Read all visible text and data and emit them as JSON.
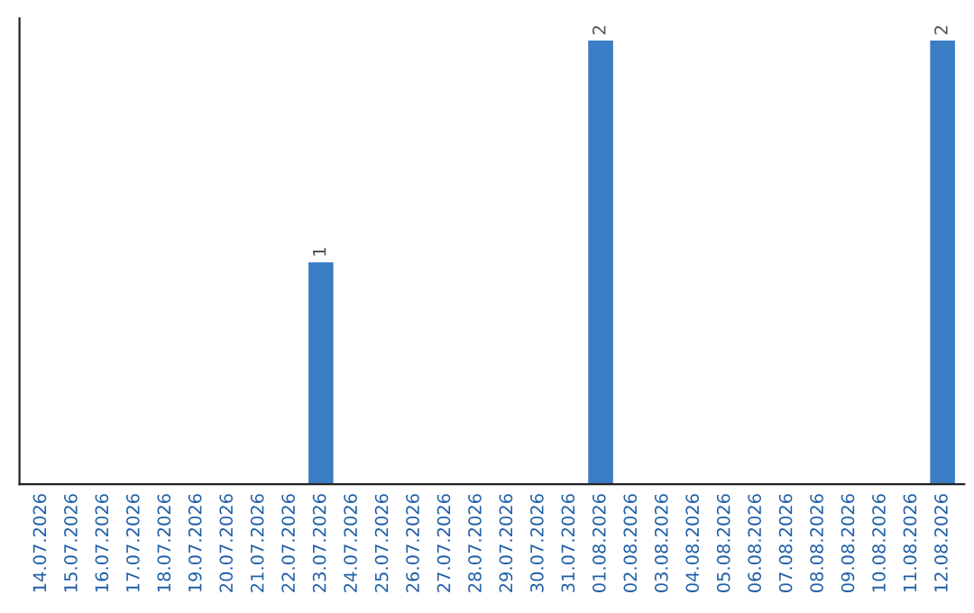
{
  "chart_data": {
    "type": "bar",
    "categories": [
      "14.07.2026",
      "15.07.2026",
      "16.07.2026",
      "17.07.2026",
      "18.07.2026",
      "19.07.2026",
      "20.07.2026",
      "21.07.2026",
      "22.07.2026",
      "23.07.2026",
      "24.07.2026",
      "25.07.2026",
      "26.07.2026",
      "27.07.2026",
      "28.07.2026",
      "29.07.2026",
      "30.07.2026",
      "31.07.2026",
      "01.08.2026",
      "02.08.2026",
      "03.08.2026",
      "04.08.2026",
      "05.08.2026",
      "06.08.2026",
      "07.08.2026",
      "08.08.2026",
      "09.08.2026",
      "10.08.2026",
      "11.08.2026",
      "12.08.2026"
    ],
    "values": [
      0,
      0,
      0,
      0,
      0,
      0,
      0,
      0,
      0,
      1,
      0,
      0,
      0,
      0,
      0,
      0,
      0,
      0,
      2,
      0,
      0,
      0,
      0,
      0,
      0,
      0,
      0,
      0,
      0,
      2
    ],
    "value_labels": [
      null,
      null,
      null,
      null,
      null,
      null,
      null,
      null,
      null,
      "1",
      null,
      null,
      null,
      null,
      null,
      null,
      null,
      null,
      "2",
      null,
      null,
      null,
      null,
      null,
      null,
      null,
      null,
      null,
      null,
      "2"
    ],
    "color": "#3b7dc4",
    "tick_labels": "x",
    "grid": false
  }
}
